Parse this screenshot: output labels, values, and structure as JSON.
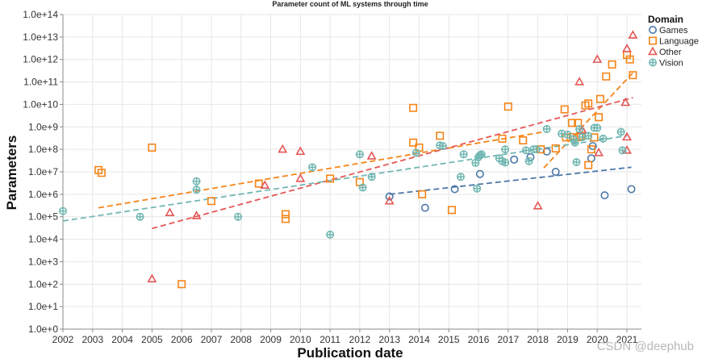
{
  "watermark": "CSDN @deephub",
  "chart_data": {
    "type": "scatter",
    "title": "Parameter count of ML systems through time",
    "xlabel": "Publication date",
    "ylabel": "Parameters",
    "xlim": [
      2002,
      2021.25
    ],
    "ylim": [
      1,
      100000000000000.0
    ],
    "yscale": "log",
    "grid": true,
    "legend_position": "top-right",
    "legend_title": "Domain",
    "x_ticks": [
      "2002",
      "2003",
      "2004",
      "2005",
      "2006",
      "2007",
      "2008",
      "2009",
      "2010",
      "2011",
      "2012",
      "2013",
      "2014",
      "2015",
      "2016",
      "2017",
      "2018",
      "2019",
      "2020",
      "2021"
    ],
    "y_ticks": [
      "1.0e+0",
      "1.0e+1",
      "1.0e+2",
      "1.0e+3",
      "1.0e+4",
      "1.0e+5",
      "1.0e+6",
      "1.0e+7",
      "1.0e+8",
      "1.0e+9",
      "1.0e+10",
      "1.0e+11",
      "1.0e+12",
      "1.0e+13",
      "1.0e+14"
    ],
    "series": [
      {
        "name": "Games",
        "color": "#4c78a8",
        "marker": "circle",
        "points": [
          [
            2013.0,
            800000.0
          ],
          [
            2014.2,
            250000.0
          ],
          [
            2015.2,
            1700000.0
          ],
          [
            2016.05,
            8000000.0
          ],
          [
            2017.75,
            45000000.0
          ],
          [
            2018.3,
            80000000.0
          ],
          [
            2018.6,
            10000000.0
          ],
          [
            2019.8,
            40000000.0
          ],
          [
            2019.85,
            140000000.0
          ],
          [
            2020.25,
            900000.0
          ],
          [
            2021.15,
            1700000.0
          ],
          [
            2017.2,
            35000000.0
          ]
        ],
        "trend": [
          [
            2013.0,
            1000000.0
          ],
          [
            2021.15,
            16000000.0
          ]
        ]
      },
      {
        "name": "Language",
        "color": "#f58518",
        "marker": "square",
        "points": [
          [
            2003.2,
            12000000.0
          ],
          [
            2003.3,
            9000000.0
          ],
          [
            2005.0,
            120000000.0
          ],
          [
            2006.0,
            100
          ],
          [
            2007.0,
            500000.0
          ],
          [
            2008.6,
            3000000.0
          ],
          [
            2009.5,
            130000.0
          ],
          [
            2009.5,
            80000.0
          ],
          [
            2011.0,
            5000000.0
          ],
          [
            2012.0,
            3500000.0
          ],
          [
            2013.8,
            7000000000.0
          ],
          [
            2013.8,
            200000000.0
          ],
          [
            2014.0,
            120000000.0
          ],
          [
            2014.1,
            1000000.0
          ],
          [
            2014.7,
            400000000.0
          ],
          [
            2015.1,
            200000.0
          ],
          [
            2016.8,
            300000000.0
          ],
          [
            2017.0,
            8000000000.0
          ],
          [
            2017.5,
            250000000.0
          ],
          [
            2018.1,
            100000000.0
          ],
          [
            2018.6,
            110000000.0
          ],
          [
            2018.9,
            6000000000.0
          ],
          [
            2018.95,
            340000000.0
          ],
          [
            2019.1,
            350000000.0
          ],
          [
            2019.15,
            1500000000.0
          ],
          [
            2019.35,
            1500000000.0
          ],
          [
            2019.4,
            350000000.0
          ],
          [
            2019.45,
            400000000.0
          ],
          [
            2019.6,
            9000000000.0
          ],
          [
            2019.7,
            11000000000.0
          ],
          [
            2019.7,
            20000000.0
          ],
          [
            2019.8,
            100000000.0
          ],
          [
            2019.9,
            340000000.0
          ],
          [
            2020.05,
            2700000000.0
          ],
          [
            2020.1,
            17500000000.0
          ],
          [
            2020.3,
            175000000000.0
          ],
          [
            2020.5,
            600000000000.0
          ],
          [
            2021.0,
            1600000000000.0
          ],
          [
            2021.1,
            1000000000000.0
          ],
          [
            2021.2,
            200000000000.0
          ]
        ],
        "trend": [
          [
            2003.2,
            250000.0
          ],
          [
            2018.2,
            600000000.0
          ]
        ],
        "trend2": [
          [
            2018.2,
            15000000.0
          ],
          [
            2021.25,
            300000000000.0
          ]
        ]
      },
      {
        "name": "Other",
        "color": "#e45756",
        "marker": "triangle",
        "points": [
          [
            2005.0,
            170
          ],
          [
            2005.6,
            150000.0
          ],
          [
            2006.5,
            110000.0
          ],
          [
            2008.8,
            2500000.0
          ],
          [
            2009.4,
            100000000.0
          ],
          [
            2010.0,
            80000000.0
          ],
          [
            2010.0,
            5000000.0
          ],
          [
            2012.4,
            50000000.0
          ],
          [
            2013.0,
            500000.0
          ],
          [
            2018.0,
            300000.0
          ],
          [
            2019.4,
            100000000000.0
          ],
          [
            2019.5,
            700000000.0
          ],
          [
            2020.0,
            1000000000000.0
          ],
          [
            2020.05,
            70000000.0
          ],
          [
            2020.95,
            12000000000.0
          ],
          [
            2021.0,
            3000000000000.0
          ],
          [
            2021.0,
            350000000.0
          ],
          [
            2021.0,
            90000000.0
          ],
          [
            2021.2,
            12000000000000.0
          ]
        ],
        "trend": [
          [
            2005.0,
            30000.0
          ],
          [
            2021.2,
            20000000000.0
          ]
        ]
      },
      {
        "name": "Vision",
        "color": "#72b7b2",
        "marker": "plus",
        "points": [
          [
            2002.0,
            180000.0
          ],
          [
            2004.6,
            100000.0
          ],
          [
            2006.5,
            3800000.0
          ],
          [
            2006.5,
            1600000.0
          ],
          [
            2007.9,
            100000.0
          ],
          [
            2010.4,
            16000000.0
          ],
          [
            2011.0,
            16000.0
          ],
          [
            2012.0,
            60000000.0
          ],
          [
            2012.1,
            2000000.0
          ],
          [
            2012.4,
            6000000.0
          ],
          [
            2013.9,
            70000000.0
          ],
          [
            2014.7,
            150000000.0
          ],
          [
            2014.8,
            140000000.0
          ],
          [
            2015.4,
            6000000.0
          ],
          [
            2015.5,
            60000000.0
          ],
          [
            2015.9,
            25000000.0
          ],
          [
            2015.95,
            1800000.0
          ],
          [
            2016.0,
            45000000.0
          ],
          [
            2016.05,
            55000000.0
          ],
          [
            2016.1,
            60000000.0
          ],
          [
            2016.7,
            40000000.0
          ],
          [
            2016.8,
            30000000.0
          ],
          [
            2016.9,
            26000000.0
          ],
          [
            2016.9,
            100000000.0
          ],
          [
            2017.6,
            90000000.0
          ],
          [
            2017.7,
            30000000.0
          ],
          [
            2017.85,
            100000000.0
          ],
          [
            2017.95,
            100000000.0
          ],
          [
            2018.3,
            800000000.0
          ],
          [
            2018.8,
            500000000.0
          ],
          [
            2019.0,
            450000000.0
          ],
          [
            2019.2,
            280000000.0
          ],
          [
            2019.25,
            200000000.0
          ],
          [
            2019.3,
            27000000.0
          ],
          [
            2019.4,
            800000000.0
          ],
          [
            2019.5,
            350000000.0
          ],
          [
            2019.7,
            400000000.0
          ],
          [
            2019.9,
            900000000.0
          ],
          [
            2020.0,
            900000000.0
          ],
          [
            2020.2,
            300000000.0
          ],
          [
            2020.8,
            600000000.0
          ],
          [
            2020.85,
            90000000.0
          ]
        ],
        "trend": [
          [
            2002.0,
            65000.0
          ],
          [
            2021.0,
            400000000.0
          ]
        ]
      }
    ]
  }
}
